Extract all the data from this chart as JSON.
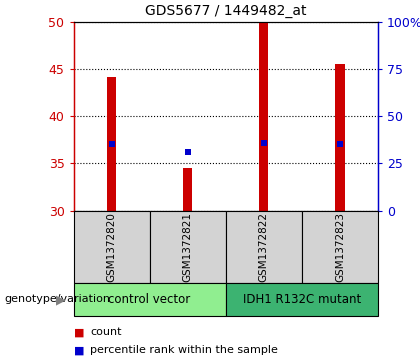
{
  "title": "GDS5677 / 1449482_at",
  "samples": [
    "GSM1372820",
    "GSM1372821",
    "GSM1372822",
    "GSM1372823"
  ],
  "bar_values": [
    44.2,
    34.5,
    50.0,
    45.5
  ],
  "percentile_values": [
    37.0,
    36.2,
    37.2,
    37.0
  ],
  "y_min": 30,
  "y_max": 50,
  "y_ticks_left": [
    30,
    35,
    40,
    45,
    50
  ],
  "y_ticks_right": [
    0,
    25,
    50,
    75,
    100
  ],
  "bar_color": "#cc0000",
  "marker_color": "#0000cc",
  "bar_width": 0.12,
  "groups": [
    {
      "label": "control vector",
      "samples": [
        0,
        1
      ],
      "color": "#90ee90"
    },
    {
      "label": "IDH1 R132C mutant",
      "samples": [
        2,
        3
      ],
      "color": "#3cb371"
    }
  ],
  "legend_items": [
    {
      "label": "count",
      "color": "#cc0000"
    },
    {
      "label": "percentile rank within the sample",
      "color": "#0000cc"
    }
  ],
  "group_label": "genotype/variation",
  "background_color": "#ffffff",
  "sample_box_color": "#d3d3d3",
  "grid_color": "#000000"
}
